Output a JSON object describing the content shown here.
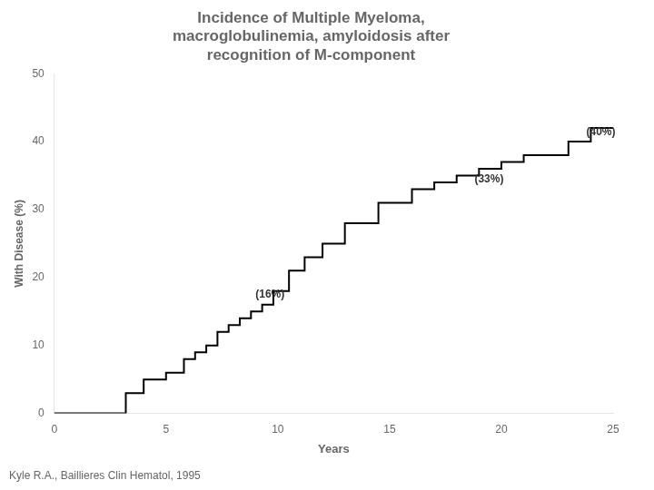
{
  "chart_data": {
    "type": "step",
    "title": [
      "Incidence of Multiple Myeloma,",
      "macroglobulinemia, amyloidosis after",
      "recognition of M-component"
    ],
    "subtitle": "Kyle R.A., Baillieres Clin Hematol, 1995",
    "xlabel": "Years",
    "ylabel": "With Disease (%)",
    "x": [
      0,
      2.5,
      3.2,
      4.0,
      5.0,
      5.8,
      6.3,
      6.8,
      7.3,
      7.8,
      8.3,
      8.8,
      9.3,
      9.8,
      10.5,
      11.2,
      12.0,
      13.0,
      14.5,
      16.0,
      17.0,
      18.0,
      19.0,
      20.0,
      21.0,
      22.0,
      23.0,
      24.0,
      25.0
    ],
    "values": [
      0,
      0,
      3,
      5,
      6,
      8,
      9,
      10,
      12,
      13,
      14,
      15,
      16,
      18,
      21,
      23,
      25,
      28,
      31,
      33,
      34,
      35,
      36,
      37,
      38,
      38,
      40,
      42,
      42
    ],
    "color": "#000000",
    "annotations": [
      {
        "x": 9.0,
        "y": 17,
        "text": "(16%)"
      },
      {
        "x": 18.8,
        "y": 34,
        "text": "(33%)"
      },
      {
        "x": 23.8,
        "y": 41,
        "text": "(40%)"
      }
    ],
    "xlim": [
      0,
      25
    ],
    "ylim": [
      0,
      50
    ],
    "xticks": [
      0,
      5,
      10,
      15,
      20,
      25
    ],
    "yticks": [
      0,
      10,
      20,
      30,
      40,
      50
    ],
    "grid": false
  }
}
